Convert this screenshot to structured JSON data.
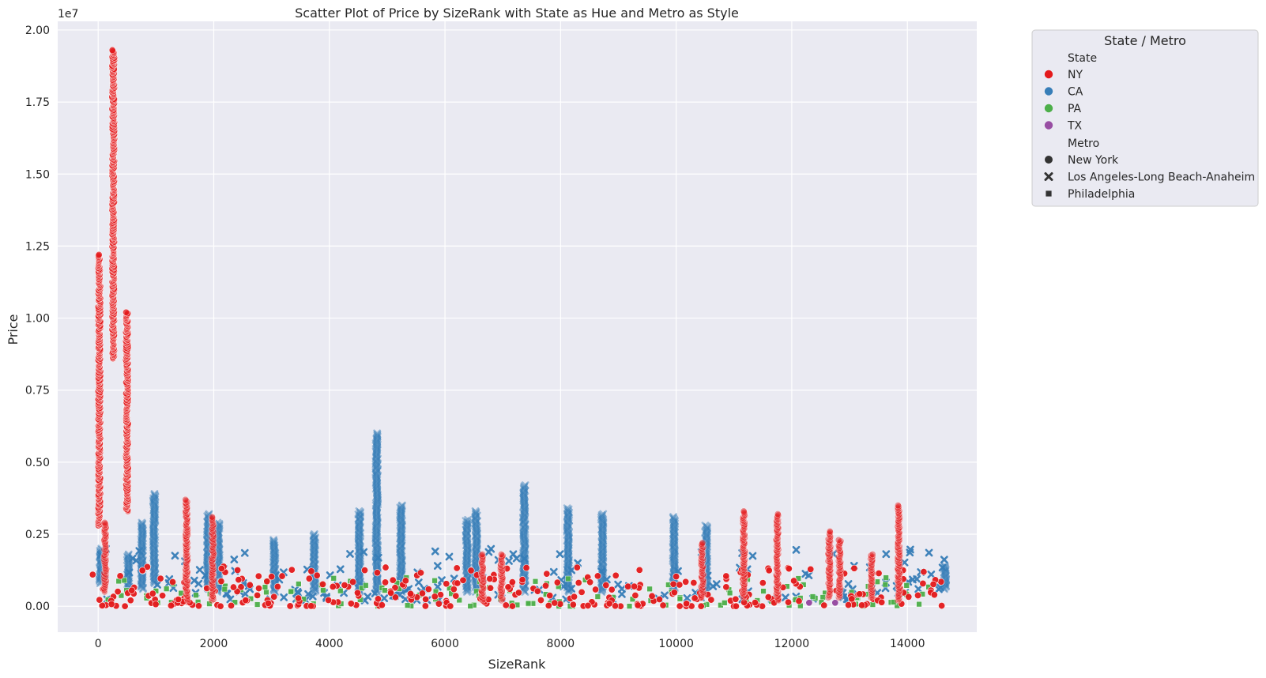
{
  "chart_data": {
    "type": "scatter",
    "title": "Scatter Plot of Price by SizeRank with State as Hue and Metro as Style",
    "xlabel": "SizeRank",
    "ylabel": "Price",
    "y_offset_label": "1e7",
    "xlim": [
      -700,
      15200
    ],
    "ylim": [
      -0.09,
      2.03
    ],
    "y_unit_scale": 10000000,
    "x_ticks": [
      0,
      2000,
      4000,
      6000,
      8000,
      10000,
      12000,
      14000
    ],
    "x_tick_labels": [
      "0",
      "2000",
      "4000",
      "6000",
      "8000",
      "10000",
      "12000",
      "14000"
    ],
    "y_ticks": [
      0,
      0.25,
      0.5,
      0.75,
      1.0,
      1.25,
      1.5,
      1.75,
      2.0
    ],
    "y_tick_labels": [
      "0.00",
      "0.25",
      "0.50",
      "0.75",
      "1.00",
      "1.25",
      "1.50",
      "1.75",
      "2.00"
    ],
    "grid": true,
    "background": "#eaeaf2",
    "legend": {
      "title": "State / Metro",
      "placement": "outside-top-right",
      "hue_title": "State",
      "hue_entries": [
        {
          "label": "NY",
          "color": "#e41a1c"
        },
        {
          "label": "CA",
          "color": "#377eb8"
        },
        {
          "label": "PA",
          "color": "#4daf4a"
        },
        {
          "label": "TX",
          "color": "#984ea3"
        }
      ],
      "style_title": "Metro",
      "style_entries": [
        {
          "label": "New York",
          "marker": "circle"
        },
        {
          "label": "Los Angeles-Long Beach-Anaheim",
          "marker": "x"
        },
        {
          "label": "Philadelphia",
          "marker": "square"
        }
      ]
    },
    "series": [
      {
        "name": "NY",
        "metro": "New York",
        "color": "#e41a1c",
        "marker": "circle",
        "columns": [
          {
            "x": 20,
            "min": 0.28,
            "max": 1.22
          },
          {
            "x": 120,
            "min": 0.05,
            "max": 0.29
          },
          {
            "x": 260,
            "min": 0.86,
            "max": 1.93
          },
          {
            "x": 500,
            "min": 0.33,
            "max": 1.02
          },
          {
            "x": 1530,
            "min": 0.02,
            "max": 0.37
          },
          {
            "x": 1980,
            "min": 0.02,
            "max": 0.31
          },
          {
            "x": 6650,
            "min": 0.02,
            "max": 0.18
          },
          {
            "x": 6980,
            "min": 0.02,
            "max": 0.18
          },
          {
            "x": 10450,
            "min": 0.03,
            "max": 0.22
          },
          {
            "x": 11170,
            "min": 0.03,
            "max": 0.33
          },
          {
            "x": 11750,
            "min": 0.02,
            "max": 0.32
          },
          {
            "x": 12650,
            "min": 0.03,
            "max": 0.26
          },
          {
            "x": 12830,
            "min": 0.03,
            "max": 0.23
          },
          {
            "x": 13380,
            "min": 0.03,
            "max": 0.18
          },
          {
            "x": 13850,
            "min": 0.02,
            "max": 0.35
          }
        ],
        "scatter_range": {
          "x": [
            -100,
            14600
          ],
          "y": [
            0.0,
            0.14
          ]
        }
      },
      {
        "name": "CA",
        "metro": "Los Angeles-Long Beach-Anaheim",
        "color": "#377eb8",
        "marker": "x",
        "columns": [
          {
            "x": 40,
            "min": 0.08,
            "max": 0.2
          },
          {
            "x": 520,
            "min": 0.06,
            "max": 0.18
          },
          {
            "x": 760,
            "min": 0.06,
            "max": 0.29
          },
          {
            "x": 970,
            "min": 0.08,
            "max": 0.39
          },
          {
            "x": 1900,
            "min": 0.06,
            "max": 0.32
          },
          {
            "x": 2080,
            "min": 0.05,
            "max": 0.29
          },
          {
            "x": 3050,
            "min": 0.05,
            "max": 0.23
          },
          {
            "x": 3740,
            "min": 0.05,
            "max": 0.25
          },
          {
            "x": 4520,
            "min": 0.05,
            "max": 0.33
          },
          {
            "x": 4820,
            "min": 0.05,
            "max": 0.6
          },
          {
            "x": 5240,
            "min": 0.05,
            "max": 0.35
          },
          {
            "x": 6380,
            "min": 0.05,
            "max": 0.3
          },
          {
            "x": 6540,
            "min": 0.05,
            "max": 0.33
          },
          {
            "x": 7370,
            "min": 0.05,
            "max": 0.42
          },
          {
            "x": 8130,
            "min": 0.05,
            "max": 0.34
          },
          {
            "x": 8720,
            "min": 0.05,
            "max": 0.32
          },
          {
            "x": 9960,
            "min": 0.05,
            "max": 0.31
          },
          {
            "x": 10520,
            "min": 0.05,
            "max": 0.28
          },
          {
            "x": 14650,
            "min": 0.06,
            "max": 0.14
          }
        ],
        "scatter_range": {
          "x": [
            0,
            14700
          ],
          "y": [
            0.02,
            0.2
          ]
        }
      },
      {
        "name": "PA",
        "metro": "Philadelphia",
        "color": "#4daf4a",
        "marker": "square",
        "columns": [],
        "scatter_range": {
          "x": [
            100,
            14400
          ],
          "y": [
            0.0,
            0.1
          ]
        }
      },
      {
        "name": "TX",
        "metro": "",
        "color": "#984ea3",
        "marker": "circle",
        "points": [
          [
            12300,
            0.012
          ],
          [
            12750,
            0.012
          ]
        ]
      }
    ]
  }
}
